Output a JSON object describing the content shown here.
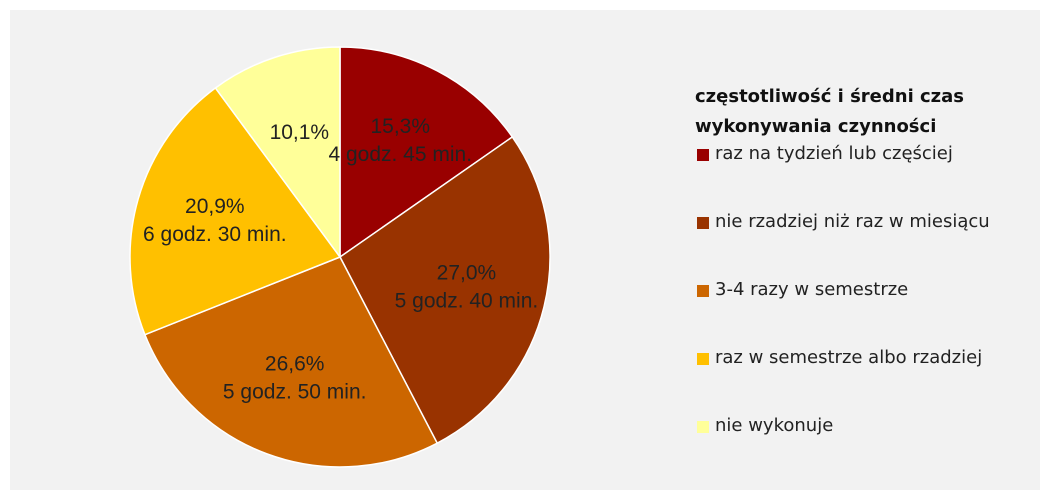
{
  "chart_data": {
    "type": "pie",
    "legend_title": "częstotliwość i średni czas wykonywania czynności",
    "categories": [
      "raz na tydzień lub częściej",
      "nie rzadziej niż raz w miesiącu",
      "3-4 razy w semestrze",
      "raz w semestrze albo rzadziej",
      "nie wykonuje"
    ],
    "values": [
      15.3,
      27.0,
      26.6,
      20.9,
      10.1
    ],
    "value_labels": [
      "15,3%",
      "27,0%",
      "26,6%",
      "20,9%",
      "10,1%"
    ],
    "annotations": [
      "4 godz. 45 min.",
      "5 godz. 40 min.",
      "5 godz. 50 min.",
      "6 godz. 30 min.",
      null
    ],
    "colors": [
      "#990000",
      "#993300",
      "#cc6600",
      "#ffc000",
      "#ffff99"
    ],
    "legend": "right"
  }
}
